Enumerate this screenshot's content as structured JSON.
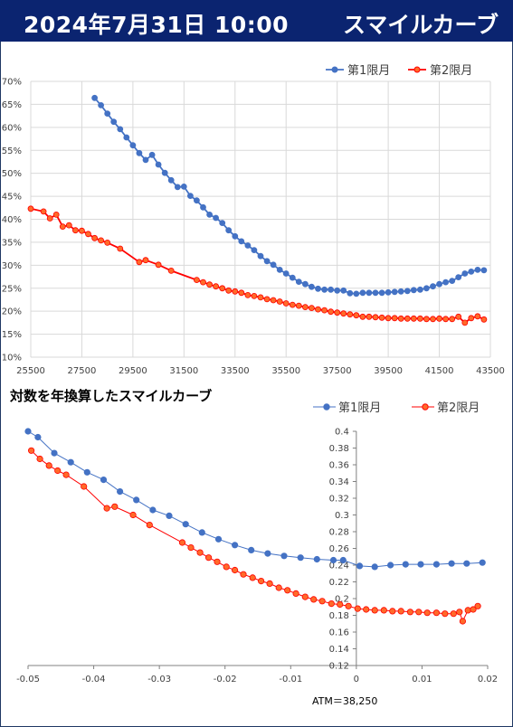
{
  "header": {
    "datetime": "2024年7月31日 10:00",
    "title": "スマイルカーブ"
  },
  "colors": {
    "header_bg": "#0b2470",
    "series1": "#4472c4",
    "series2": "#ff0000"
  },
  "chart_data": [
    {
      "type": "line",
      "title": "",
      "xlabel": "",
      "ylabel": "",
      "xlim": [
        25500,
        43500
      ],
      "ylim": [
        10,
        70
      ],
      "x_ticks": [
        "25500",
        "27500",
        "29500",
        "31500",
        "33500",
        "35500",
        "37500",
        "39500",
        "41500",
        "43500"
      ],
      "y_ticks": [
        "10%",
        "15%",
        "20%",
        "25%",
        "30%",
        "35%",
        "40%",
        "45%",
        "50%",
        "55%",
        "60%",
        "65%",
        "70%"
      ],
      "legend_position": "top-right",
      "grid": true,
      "series": [
        {
          "name": "第1限月",
          "color": "#4472c4",
          "x": [
            28000,
            28250,
            28500,
            28750,
            29000,
            29250,
            29500,
            29750,
            30000,
            30250,
            30500,
            30750,
            31000,
            31250,
            31500,
            31750,
            32000,
            32250,
            32500,
            32750,
            33000,
            33250,
            33500,
            33750,
            34000,
            34250,
            34500,
            34750,
            35000,
            35250,
            35500,
            35750,
            36000,
            36250,
            36500,
            36750,
            37000,
            37250,
            37500,
            37750,
            38000,
            38250,
            38500,
            38750,
            39000,
            39250,
            39500,
            39750,
            40000,
            40250,
            40500,
            40750,
            41000,
            41250,
            41500,
            41750,
            42000,
            42250,
            42500,
            42750,
            43000,
            43250
          ],
          "y": [
            66.4,
            64.8,
            63.0,
            61.2,
            59.6,
            57.8,
            56.1,
            54.4,
            52.9,
            54.0,
            51.9,
            50.1,
            48.5,
            47.0,
            47.1,
            45.1,
            44.1,
            42.6,
            41.0,
            40.3,
            39.2,
            37.6,
            36.3,
            35.2,
            34.3,
            33.3,
            32.0,
            30.9,
            30.1,
            29.0,
            28.2,
            27.3,
            26.4,
            25.9,
            25.3,
            24.9,
            24.7,
            24.7,
            24.5,
            24.5,
            23.9,
            23.8,
            24.0,
            24.0,
            24.0,
            24.0,
            24.1,
            24.2,
            24.3,
            24.4,
            24.6,
            24.7,
            25.0,
            25.4,
            25.9,
            26.3,
            26.6,
            27.4,
            28.2,
            28.6,
            29.0,
            28.9
          ]
        },
        {
          "name": "第2限月",
          "color": "#ff0000",
          "x": [
            25500,
            26000,
            26250,
            26500,
            26750,
            27000,
            27250,
            27500,
            27750,
            28000,
            28250,
            28500,
            29000,
            29750,
            30000,
            30500,
            31000,
            32000,
            32250,
            32500,
            32750,
            33000,
            33250,
            33500,
            33750,
            34000,
            34250,
            34500,
            34750,
            35000,
            35250,
            35500,
            35750,
            36000,
            36250,
            36500,
            36750,
            37000,
            37250,
            37500,
            37750,
            38000,
            38250,
            38500,
            38750,
            39000,
            39250,
            39500,
            39750,
            40000,
            40250,
            40500,
            40750,
            41000,
            41250,
            41500,
            41750,
            42000,
            42250,
            42500,
            42750,
            43000,
            43250
          ],
          "y": [
            42.3,
            41.7,
            40.2,
            41.0,
            38.4,
            38.7,
            37.6,
            37.5,
            36.8,
            35.9,
            35.4,
            34.9,
            33.6,
            30.7,
            31.1,
            30.1,
            28.8,
            26.8,
            26.3,
            25.8,
            25.4,
            25.0,
            24.5,
            24.3,
            24.0,
            23.5,
            23.3,
            23.0,
            22.6,
            22.4,
            22.1,
            21.7,
            21.4,
            21.2,
            20.9,
            20.7,
            20.4,
            20.2,
            19.9,
            19.7,
            19.5,
            19.3,
            19.1,
            18.8,
            18.8,
            18.7,
            18.6,
            18.5,
            18.5,
            18.4,
            18.4,
            18.4,
            18.4,
            18.3,
            18.3,
            18.4,
            18.3,
            18.3,
            18.8,
            17.5,
            18.5,
            18.9,
            18.2
          ]
        }
      ]
    },
    {
      "type": "line",
      "title": "対数を年換算したスマイルカーブ",
      "xlabel": "",
      "ylabel": "",
      "xlim": [
        -0.05,
        0.02
      ],
      "ylim": [
        0.12,
        0.4
      ],
      "x_ticks": [
        "-0.05",
        "-0.04",
        "-0.03",
        "-0.02",
        "-0.01",
        "0",
        "0.01",
        "0.02"
      ],
      "y_ticks": [
        "0.12",
        "0.14",
        "0.16",
        "0.18",
        "0.2",
        "0.22",
        "0.24",
        "0.26",
        "0.28",
        "0.3",
        "0.32",
        "0.34",
        "0.36",
        "0.38",
        "0.4"
      ],
      "legend_position": "top-right",
      "grid": false,
      "annotation": "ATM＝38,250",
      "series": [
        {
          "name": "第1限月",
          "color": "#4472c4",
          "x": [
            -0.05,
            -0.0485,
            -0.046,
            -0.0435,
            -0.041,
            -0.0385,
            -0.036,
            -0.0335,
            -0.031,
            -0.0285,
            -0.026,
            -0.0235,
            -0.021,
            -0.0185,
            -0.016,
            -0.0135,
            -0.011,
            -0.0085,
            -0.006,
            -0.0035,
            -0.002,
            0.0005,
            0.0028,
            0.0052,
            0.0075,
            0.0098,
            0.0122,
            0.0145,
            0.0168,
            0.0192
          ],
          "y": [
            0.4,
            0.393,
            0.374,
            0.363,
            0.351,
            0.342,
            0.328,
            0.318,
            0.306,
            0.299,
            0.289,
            0.279,
            0.271,
            0.264,
            0.258,
            0.254,
            0.251,
            0.249,
            0.247,
            0.246,
            0.246,
            0.239,
            0.238,
            0.24,
            0.241,
            0.241,
            0.241,
            0.242,
            0.242,
            0.243
          ]
        },
        {
          "name": "第2限月",
          "color": "#ff0000",
          "x": [
            -0.0495,
            -0.0482,
            -0.0468,
            -0.0455,
            -0.0442,
            -0.0415,
            -0.038,
            -0.0368,
            -0.034,
            -0.0315,
            -0.0265,
            -0.0252,
            -0.0238,
            -0.0225,
            -0.0212,
            -0.0198,
            -0.0185,
            -0.0172,
            -0.0158,
            -0.0145,
            -0.0132,
            -0.0118,
            -0.0105,
            -0.0092,
            -0.0078,
            -0.0065,
            -0.0052,
            -0.0038,
            -0.0025,
            -0.0012,
            0.0002,
            0.0015,
            0.0028,
            0.0042,
            0.0055,
            0.0068,
            0.0082,
            0.0095,
            0.0108,
            0.0122,
            0.0135,
            0.0148,
            0.0157,
            0.0162,
            0.017,
            0.0178,
            0.0185
          ],
          "y": [
            0.377,
            0.367,
            0.359,
            0.353,
            0.348,
            0.334,
            0.308,
            0.31,
            0.3,
            0.288,
            0.267,
            0.261,
            0.255,
            0.249,
            0.244,
            0.238,
            0.234,
            0.229,
            0.225,
            0.221,
            0.218,
            0.213,
            0.21,
            0.206,
            0.202,
            0.199,
            0.197,
            0.194,
            0.193,
            0.191,
            0.188,
            0.187,
            0.186,
            0.186,
            0.185,
            0.185,
            0.184,
            0.184,
            0.183,
            0.183,
            0.182,
            0.182,
            0.184,
            0.173,
            0.186,
            0.187,
            0.191
          ]
        }
      ]
    }
  ]
}
